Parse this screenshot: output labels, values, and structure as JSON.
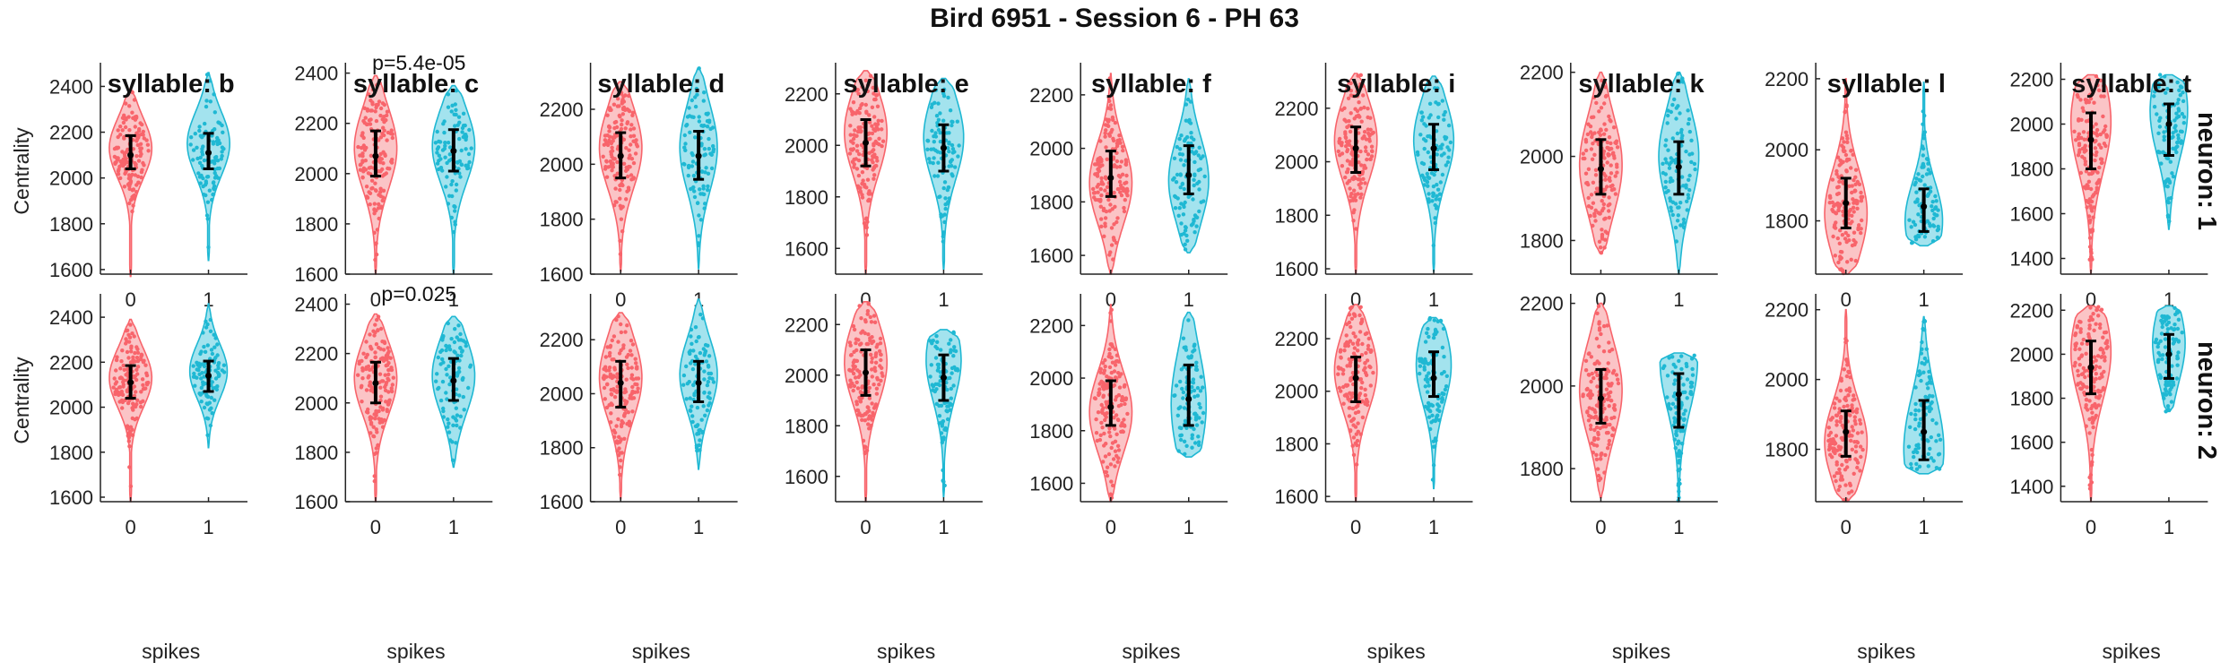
{
  "chart_data": {
    "type": "violin",
    "title": "Bird 6951 - Session 6 - PH 63",
    "xlabel": "spikes",
    "ylabel": "Centrality",
    "x_categories": [
      "0",
      "1"
    ],
    "row_labels": [
      "neuron: 1",
      "neuron: 2"
    ],
    "columns": [
      {
        "title": "syllable: b",
        "ylim": [
          1580,
          2480
        ],
        "yticks": [
          1600,
          1800,
          2000,
          2200,
          2400
        ],
        "rows": [
          {
            "groups": [
              {
                "lo": 1570,
                "hi": 2390,
                "q1": 2040,
                "med": 2100,
                "q3": 2185,
                "peak": 2130,
                "width": 0.85
              },
              {
                "lo": 1640,
                "hi": 2460,
                "q1": 2040,
                "med": 2110,
                "q3": 2195,
                "peak": 2150,
                "width": 0.85
              }
            ],
            "pval": ""
          },
          {
            "groups": [
              {
                "lo": 1580,
                "hi": 2390,
                "q1": 2040,
                "med": 2110,
                "q3": 2185,
                "peak": 2130,
                "width": 0.85
              },
              {
                "lo": 1820,
                "hi": 2460,
                "q1": 2070,
                "med": 2140,
                "q3": 2205,
                "peak": 2160,
                "width": 0.75
              }
            ],
            "pval": ""
          }
        ]
      },
      {
        "title": "syllable: c",
        "ylim": [
          1600,
          2420
        ],
        "yticks": [
          1600,
          1800,
          2000,
          2200,
          2400
        ],
        "rows": [
          {
            "groups": [
              {
                "lo": 1600,
                "hi": 2390,
                "q1": 1990,
                "med": 2070,
                "q3": 2170,
                "peak": 2100,
                "width": 0.85
              },
              {
                "lo": 1600,
                "hi": 2350,
                "q1": 2010,
                "med": 2090,
                "q3": 2175,
                "peak": 2110,
                "width": 0.85
              }
            ],
            "pval": "p=5.4e-05"
          },
          {
            "groups": [
              {
                "lo": 1600,
                "hi": 2360,
                "q1": 2000,
                "med": 2080,
                "q3": 2165,
                "peak": 2100,
                "width": 0.85
              },
              {
                "lo": 1740,
                "hi": 2350,
                "q1": 2010,
                "med": 2090,
                "q3": 2180,
                "peak": 2110,
                "width": 0.85
              }
            ],
            "pval": "p=0.025"
          }
        ]
      },
      {
        "title": "syllable: d",
        "ylim": [
          1600,
          2350
        ],
        "yticks": [
          1600,
          1800,
          2000,
          2200
        ],
        "rows": [
          {
            "groups": [
              {
                "lo": 1610,
                "hi": 2300,
                "q1": 1950,
                "med": 2030,
                "q3": 2115,
                "peak": 2060,
                "width": 0.85
              },
              {
                "lo": 1620,
                "hi": 2350,
                "q1": 1945,
                "med": 2030,
                "q3": 2120,
                "peak": 2060,
                "width": 0.75
              }
            ],
            "pval": ""
          },
          {
            "groups": [
              {
                "lo": 1610,
                "hi": 2300,
                "q1": 1950,
                "med": 2040,
                "q3": 2120,
                "peak": 2060,
                "width": 0.85
              },
              {
                "lo": 1720,
                "hi": 2350,
                "q1": 1970,
                "med": 2040,
                "q3": 2120,
                "peak": 2070,
                "width": 0.75
              }
            ],
            "pval": ""
          }
        ]
      },
      {
        "title": "syllable: e",
        "ylim": [
          1500,
          2300
        ],
        "yticks": [
          1600,
          1800,
          2000,
          2200
        ],
        "rows": [
          {
            "groups": [
              {
                "lo": 1500,
                "hi": 2290,
                "q1": 1920,
                "med": 2010,
                "q3": 2100,
                "peak": 2050,
                "width": 0.85
              },
              {
                "lo": 1520,
                "hi": 2260,
                "q1": 1900,
                "med": 1990,
                "q3": 2080,
                "peak": 2030,
                "width": 0.8
              }
            ],
            "pval": ""
          },
          {
            "groups": [
              {
                "lo": 1500,
                "hi": 2290,
                "q1": 1920,
                "med": 2010,
                "q3": 2100,
                "peak": 2050,
                "width": 0.85
              },
              {
                "lo": 1520,
                "hi": 2180,
                "q1": 1900,
                "med": 1990,
                "q3": 2080,
                "peak": 2060,
                "width": 0.7
              }
            ],
            "pval": ""
          }
        ]
      },
      {
        "title": "syllable: f",
        "ylim": [
          1530,
          2300
        ],
        "yticks": [
          1600,
          1800,
          2000,
          2200
        ],
        "rows": [
          {
            "groups": [
              {
                "lo": 1530,
                "hi": 2280,
                "q1": 1820,
                "med": 1890,
                "q3": 1990,
                "peak": 1870,
                "width": 0.85
              },
              {
                "lo": 1610,
                "hi": 2260,
                "q1": 1830,
                "med": 1900,
                "q3": 2010,
                "peak": 1880,
                "width": 0.8
              }
            ],
            "pval": ""
          },
          {
            "groups": [
              {
                "lo": 1530,
                "hi": 2280,
                "q1": 1820,
                "med": 1890,
                "q3": 1990,
                "peak": 1870,
                "width": 0.85
              },
              {
                "lo": 1700,
                "hi": 2250,
                "q1": 1820,
                "med": 1920,
                "q3": 2050,
                "peak": 1900,
                "width": 0.7
              }
            ],
            "pval": ""
          }
        ]
      },
      {
        "title": "syllable: i",
        "ylim": [
          1580,
          2350
        ],
        "yticks": [
          1600,
          1800,
          2000,
          2200
        ],
        "rows": [
          {
            "groups": [
              {
                "lo": 1580,
                "hi": 2330,
                "q1": 1960,
                "med": 2050,
                "q3": 2130,
                "peak": 2080,
                "width": 0.85
              },
              {
                "lo": 1590,
                "hi": 2320,
                "q1": 1970,
                "med": 2050,
                "q3": 2140,
                "peak": 2080,
                "width": 0.8
              }
            ],
            "pval": ""
          },
          {
            "groups": [
              {
                "lo": 1580,
                "hi": 2330,
                "q1": 1960,
                "med": 2050,
                "q3": 2130,
                "peak": 2080,
                "width": 0.85
              },
              {
                "lo": 1630,
                "hi": 2280,
                "q1": 1980,
                "med": 2050,
                "q3": 2150,
                "peak": 2100,
                "width": 0.7
              }
            ],
            "pval": ""
          }
        ]
      },
      {
        "title": "syllable: k",
        "ylim": [
          1720,
          2210
        ],
        "yticks": [
          1800,
          2000,
          2200
        ],
        "rows": [
          {
            "groups": [
              {
                "lo": 1770,
                "hi": 2200,
                "q1": 1910,
                "med": 1970,
                "q3": 2040,
                "peak": 1980,
                "width": 0.85
              },
              {
                "lo": 1720,
                "hi": 2200,
                "q1": 1910,
                "med": 1975,
                "q3": 2035,
                "peak": 2000,
                "width": 0.8
              }
            ],
            "pval": ""
          },
          {
            "groups": [
              {
                "lo": 1730,
                "hi": 2200,
                "q1": 1910,
                "med": 1970,
                "q3": 2040,
                "peak": 1990,
                "width": 0.85
              },
              {
                "lo": 1720,
                "hi": 2080,
                "q1": 1900,
                "med": 1980,
                "q3": 2030,
                "peak": 2060,
                "width": 0.75
              }
            ],
            "pval": ""
          }
        ]
      },
      {
        "title": "syllable: l",
        "ylim": [
          1650,
          2230
        ],
        "yticks": [
          1800,
          2000,
          2200
        ],
        "rows": [
          {
            "groups": [
              {
                "lo": 1650,
                "hi": 2200,
                "q1": 1780,
                "med": 1850,
                "q3": 1920,
                "peak": 1820,
                "width": 0.85
              },
              {
                "lo": 1730,
                "hi": 2190,
                "q1": 1770,
                "med": 1840,
                "q3": 1890,
                "peak": 1800,
                "width": 0.75
              }
            ],
            "pval": ""
          },
          {
            "groups": [
              {
                "lo": 1650,
                "hi": 2200,
                "q1": 1780,
                "med": 1850,
                "q3": 1910,
                "peak": 1820,
                "width": 0.85
              },
              {
                "lo": 1730,
                "hi": 2180,
                "q1": 1770,
                "med": 1850,
                "q3": 1940,
                "peak": 1800,
                "width": 0.8
              }
            ],
            "pval": ""
          }
        ]
      },
      {
        "title": "syllable: t",
        "ylim": [
          1330,
          2250
        ],
        "yticks": [
          1400,
          1600,
          1800,
          2000,
          2200
        ],
        "rows": [
          {
            "groups": [
              {
                "lo": 1330,
                "hi": 2220,
                "q1": 1800,
                "med": 1930,
                "q3": 2050,
                "peak": 2010,
                "width": 0.8
              },
              {
                "lo": 1530,
                "hi": 2220,
                "q1": 1860,
                "med": 2000,
                "q3": 2090,
                "peak": 2060,
                "width": 0.75
              }
            ],
            "pval": ""
          },
          {
            "groups": [
              {
                "lo": 1330,
                "hi": 2220,
                "q1": 1820,
                "med": 1940,
                "q3": 2060,
                "peak": 2010,
                "width": 0.8
              },
              {
                "lo": 1740,
                "hi": 2220,
                "q1": 1890,
                "med": 2000,
                "q3": 2090,
                "peak": 2050,
                "width": 0.65
              }
            ],
            "pval": ""
          }
        ]
      }
    ],
    "group_colors": [
      "#f8646b",
      "#1fb8d3"
    ],
    "group_fill_colors": [
      "#fbc4c6",
      "#a3e3ee"
    ]
  }
}
